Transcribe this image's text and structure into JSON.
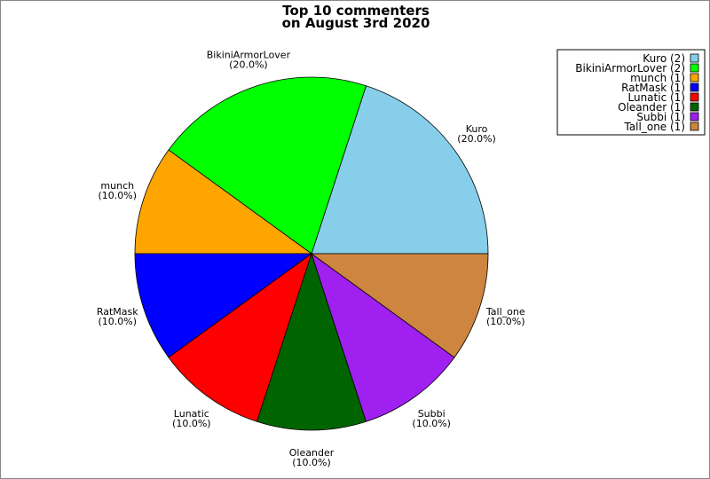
{
  "chart_data": {
    "type": "pie",
    "title": [
      "Top 10 commenters",
      "on August 3rd 2020"
    ],
    "slices": [
      {
        "label": "Kuro",
        "value": 2,
        "pct": "(20.0%)",
        "legend": "Kuro (2)",
        "color": "#87CEEB"
      },
      {
        "label": "BikiniArmorLover",
        "value": 2,
        "pct": "(20.0%)",
        "legend": "BikiniArmorLover (2)",
        "color": "#00FF00"
      },
      {
        "label": "munch",
        "value": 1,
        "pct": "(10.0%)",
        "legend": "munch (1)",
        "color": "#FFA500"
      },
      {
        "label": "RatMask",
        "value": 1,
        "pct": "(10.0%)",
        "legend": "RatMask (1)",
        "color": "#0000FF"
      },
      {
        "label": "Lunatic",
        "value": 1,
        "pct": "(10.0%)",
        "legend": "Lunatic (1)",
        "color": "#FF0000"
      },
      {
        "label": "Oleander",
        "value": 1,
        "pct": "(10.0%)",
        "legend": "Oleander (1)",
        "color": "#006400"
      },
      {
        "label": "Subbi",
        "value": 1,
        "pct": "(10.0%)",
        "legend": "Subbi (1)",
        "color": "#A020F0"
      },
      {
        "label": "Tall_one",
        "value": 1,
        "pct": "(10.0%)",
        "legend": "Tall_one (1)",
        "color": "#CD853F"
      }
    ],
    "legend_placement": "top-right"
  }
}
